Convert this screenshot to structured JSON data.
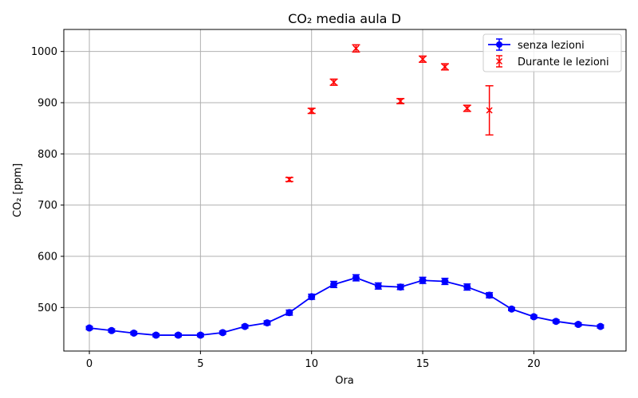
{
  "chart_data": {
    "type": "line",
    "title": "CO₂ media aula D",
    "xlabel": "Ora",
    "ylabel": "CO₂ [ppm]",
    "xlim": [
      -1.15,
      24.15
    ],
    "ylim": [
      415,
      1043
    ],
    "xticks": [
      0,
      5,
      10,
      15,
      20
    ],
    "yticks": [
      500,
      600,
      700,
      800,
      900,
      1000
    ],
    "grid": true,
    "legend_position": "top-right",
    "series": [
      {
        "name": "senza lezioni",
        "color": "#0000ff",
        "marker": "circle",
        "style": "line-errorbar",
        "x": [
          0,
          1,
          2,
          3,
          4,
          5,
          6,
          7,
          8,
          9,
          10,
          11,
          12,
          13,
          14,
          15,
          16,
          17,
          18,
          19,
          20,
          21,
          22,
          23
        ],
        "y": [
          460,
          455,
          450,
          446,
          446,
          446,
          451,
          463,
          470,
          490,
          521,
          545,
          558,
          542,
          540,
          553,
          551,
          540,
          524,
          497,
          482,
          473,
          467,
          463
        ],
        "err": [
          3,
          3,
          3,
          3,
          3,
          3,
          3,
          3,
          4,
          5,
          5,
          6,
          6,
          6,
          5,
          6,
          6,
          6,
          5,
          3,
          3,
          3,
          3,
          3
        ]
      },
      {
        "name": "Durante le lezioni",
        "color": "#ff0000",
        "marker": "x",
        "style": "errorbar-only",
        "x": [
          9,
          10,
          11,
          12,
          14,
          15,
          16,
          17,
          18
        ],
        "y": [
          750,
          884,
          940,
          1006,
          903,
          985,
          970,
          889,
          885
        ],
        "err": [
          4,
          5,
          6,
          7,
          5,
          6,
          6,
          6,
          48
        ]
      }
    ]
  }
}
